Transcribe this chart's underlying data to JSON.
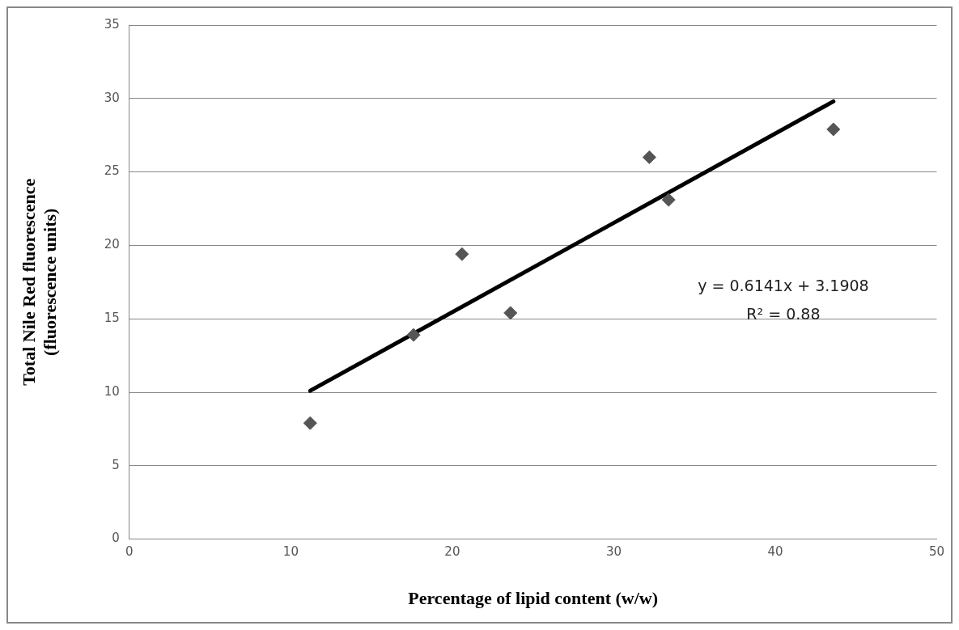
{
  "chart_data": {
    "type": "scatter",
    "xlabel": "Percentage of lipid content (w/w)",
    "ylabel": "Total Nile Red fluorescence\n(fluorescence units)",
    "series": [
      {
        "marker": "diamond",
        "color": "#555555",
        "x": [
          11.2,
          17.6,
          20.6,
          23.6,
          32.2,
          33.4,
          43.6
        ],
        "values": [
          7.9,
          13.9,
          19.4,
          15.4,
          26.0,
          23.1,
          27.9
        ]
      },
      {
        "type": "line",
        "marker": "none",
        "color": "#000000",
        "x": [
          11.2,
          43.6
        ],
        "values": [
          10.1,
          29.8
        ]
      }
    ],
    "xlim": [
      0,
      50
    ],
    "xticks": [
      0,
      10,
      20,
      30,
      40,
      50
    ],
    "ylim": [
      0,
      35
    ],
    "yticks": [
      0,
      5,
      10,
      15,
      20,
      25,
      30,
      35
    ],
    "grid": "y",
    "legend": false,
    "annotations": [
      "y = 0.6141x + 3.1908",
      "R² = 0.88"
    ]
  }
}
